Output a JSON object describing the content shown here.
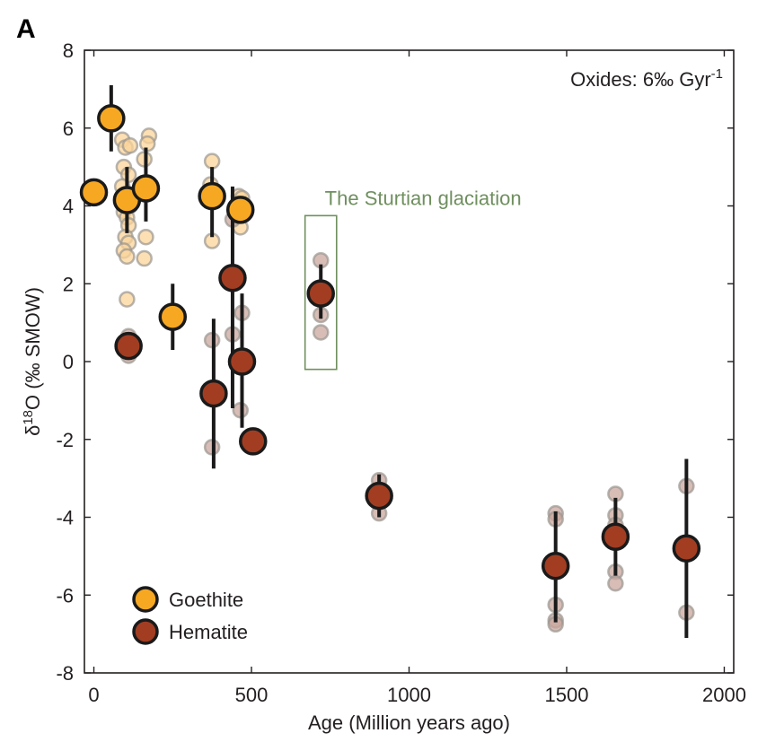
{
  "chart_data": {
    "type": "scatter",
    "panel_label": "A",
    "xlabel": "Age (Million years ago)",
    "ylabel": "δ18O (‰ SMOW)",
    "ylabel_parts": {
      "prefix": "δ",
      "sup": "18",
      "rest": "O (‰ SMOW)"
    },
    "xlim": [
      -30,
      2030
    ],
    "ylim": [
      -8,
      8
    ],
    "xticks": [
      0,
      500,
      1000,
      1500,
      2000
    ],
    "yticks": [
      -8,
      -6,
      -4,
      -2,
      0,
      2,
      4,
      6,
      8
    ],
    "grid": false,
    "legend_position": "bottom-left",
    "note": {
      "text": "Oxides: 6‰ Gyr",
      "sup": "-1"
    },
    "annotation": {
      "text": "The Sturtian glaciation",
      "box_x": [
        670,
        770
      ],
      "box_y": [
        -0.2,
        3.75
      ]
    },
    "colors": {
      "goethite": "#f7a823",
      "hematite": "#a23d22",
      "goethite_faded": "#fbd49a",
      "hematite_faded": "#c9a79d",
      "annotation": "#6f8f5e"
    },
    "series": [
      {
        "name": "Goethite",
        "color": "#f7a823",
        "means": [
          {
            "x": 0,
            "y": 4.35
          },
          {
            "x": 55,
            "y": 6.25,
            "ylo": 5.4,
            "yhi": 7.1
          },
          {
            "x": 105,
            "y": 4.15,
            "ylo": 3.3,
            "yhi": 5.0
          },
          {
            "x": 165,
            "y": 4.45,
            "ylo": 3.6,
            "yhi": 5.5
          },
          {
            "x": 250,
            "y": 1.15,
            "ylo": 0.3,
            "yhi": 2.0
          },
          {
            "x": 375,
            "y": 4.25,
            "ylo": 3.2,
            "yhi": 5.0
          },
          {
            "x": 465,
            "y": 3.9
          }
        ],
        "samples": [
          {
            "x": 90,
            "y": 5.7
          },
          {
            "x": 100,
            "y": 5.5
          },
          {
            "x": 115,
            "y": 5.55
          },
          {
            "x": 95,
            "y": 5.0
          },
          {
            "x": 110,
            "y": 4.8
          },
          {
            "x": 90,
            "y": 4.5
          },
          {
            "x": 100,
            "y": 4.3
          },
          {
            "x": 115,
            "y": 4.0
          },
          {
            "x": 95,
            "y": 3.85
          },
          {
            "x": 105,
            "y": 3.7
          },
          {
            "x": 110,
            "y": 3.5
          },
          {
            "x": 100,
            "y": 3.2
          },
          {
            "x": 110,
            "y": 3.05
          },
          {
            "x": 95,
            "y": 2.85
          },
          {
            "x": 105,
            "y": 2.7
          },
          {
            "x": 105,
            "y": 1.6
          },
          {
            "x": 175,
            "y": 5.8
          },
          {
            "x": 170,
            "y": 5.6
          },
          {
            "x": 160,
            "y": 5.2
          },
          {
            "x": 170,
            "y": 4.6
          },
          {
            "x": 165,
            "y": 3.2
          },
          {
            "x": 160,
            "y": 2.65
          },
          {
            "x": 375,
            "y": 5.15
          },
          {
            "x": 370,
            "y": 4.55
          },
          {
            "x": 375,
            "y": 3.1
          },
          {
            "x": 460,
            "y": 4.25
          },
          {
            "x": 470,
            "y": 4.2
          },
          {
            "x": 465,
            "y": 3.45
          }
        ]
      },
      {
        "name": "Hematite",
        "color": "#a23d22",
        "means": [
          {
            "x": 110,
            "y": 0.4,
            "ylo": 0.1,
            "yhi": 0.7
          },
          {
            "x": 380,
            "y": -0.82,
            "ylo": -2.75,
            "yhi": 1.1
          },
          {
            "x": 440,
            "y": 2.15,
            "ylo": -1.2,
            "yhi": 4.5
          },
          {
            "x": 470,
            "y": 0.0,
            "ylo": -1.7,
            "yhi": 1.75
          },
          {
            "x": 505,
            "y": -2.05
          },
          {
            "x": 720,
            "y": 1.75,
            "ylo": 1.1,
            "yhi": 2.5
          },
          {
            "x": 905,
            "y": -3.45,
            "ylo": -4.0,
            "yhi": -2.9
          },
          {
            "x": 1465,
            "y": -5.25,
            "ylo": -6.7,
            "yhi": -3.85
          },
          {
            "x": 1655,
            "y": -4.5,
            "ylo": -5.5,
            "yhi": -3.5
          },
          {
            "x": 1880,
            "y": -4.8,
            "ylo": -7.1,
            "yhi": -2.5
          }
        ],
        "samples": [
          {
            "x": 110,
            "y": 0.65
          },
          {
            "x": 110,
            "y": 0.15
          },
          {
            "x": 375,
            "y": 0.55
          },
          {
            "x": 375,
            "y": -2.2
          },
          {
            "x": 440,
            "y": 3.65
          },
          {
            "x": 440,
            "y": 0.7
          },
          {
            "x": 470,
            "y": 1.25
          },
          {
            "x": 465,
            "y": -1.25
          },
          {
            "x": 720,
            "y": 2.6
          },
          {
            "x": 720,
            "y": 1.2
          },
          {
            "x": 720,
            "y": 0.75
          },
          {
            "x": 905,
            "y": -3.05
          },
          {
            "x": 905,
            "y": -3.9
          },
          {
            "x": 1465,
            "y": -3.9
          },
          {
            "x": 1465,
            "y": -4.05
          },
          {
            "x": 1465,
            "y": -6.25
          },
          {
            "x": 1465,
            "y": -6.65
          },
          {
            "x": 1465,
            "y": -6.75
          },
          {
            "x": 1655,
            "y": -3.4
          },
          {
            "x": 1655,
            "y": -3.95
          },
          {
            "x": 1655,
            "y": -4.2
          },
          {
            "x": 1655,
            "y": -5.4
          },
          {
            "x": 1655,
            "y": -5.7
          },
          {
            "x": 1880,
            "y": -3.2
          },
          {
            "x": 1880,
            "y": -6.45
          }
        ]
      }
    ]
  }
}
